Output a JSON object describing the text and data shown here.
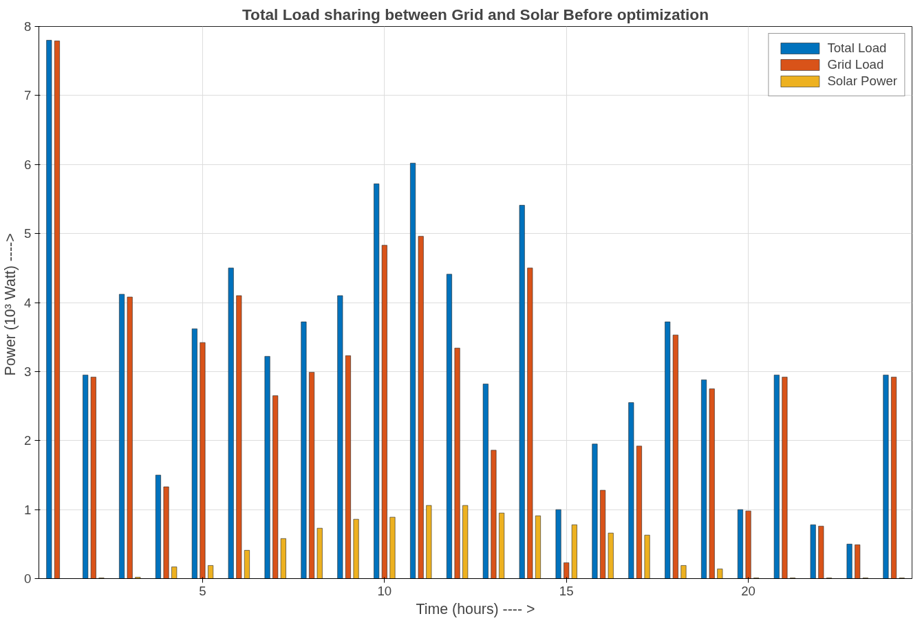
{
  "chart_data": {
    "type": "bar",
    "title": "Total Load sharing between Grid and Solar Before optimization",
    "xlabel": "Time (hours) ---- >",
    "ylabel": "Power (10³ Watt)  ---->",
    "x": [
      1,
      2,
      3,
      4,
      5,
      6,
      7,
      8,
      9,
      10,
      11,
      12,
      13,
      14,
      15,
      16,
      17,
      18,
      19,
      20,
      21,
      22,
      23,
      24
    ],
    "series": [
      {
        "name": "Total Load",
        "color": "#0072bd",
        "values": [
          7.8,
          2.95,
          4.12,
          1.5,
          3.62,
          4.5,
          3.22,
          3.72,
          4.1,
          5.72,
          6.02,
          4.41,
          2.82,
          5.41,
          1.0,
          1.95,
          2.55,
          3.72,
          2.88,
          1.0,
          2.95,
          0.78,
          0.5,
          2.95
        ]
      },
      {
        "name": "Grid Load",
        "color": "#d95319",
        "values": [
          7.79,
          2.92,
          4.08,
          1.33,
          3.42,
          4.1,
          2.65,
          2.99,
          3.23,
          4.83,
          4.96,
          3.34,
          1.86,
          4.5,
          0.23,
          1.28,
          1.92,
          3.53,
          2.75,
          0.98,
          2.92,
          0.76,
          0.49,
          2.92
        ]
      },
      {
        "name": "Solar Power",
        "color": "#edb120",
        "values": [
          null,
          0.01,
          0.02,
          0.17,
          0.19,
          0.41,
          0.58,
          0.73,
          0.86,
          0.89,
          1.06,
          1.06,
          0.95,
          0.91,
          0.78,
          0.66,
          0.63,
          0.19,
          0.14,
          0.01,
          0.01,
          0.01,
          0.01,
          0.01
        ]
      }
    ],
    "xlim": [
      0.5,
      24.5
    ],
    "xticks": [
      5,
      10,
      15,
      20
    ],
    "ylim": [
      0,
      8
    ],
    "yticks": [
      0,
      1,
      2,
      3,
      4,
      5,
      6,
      7,
      8
    ],
    "grid": true,
    "legend": "top right"
  }
}
